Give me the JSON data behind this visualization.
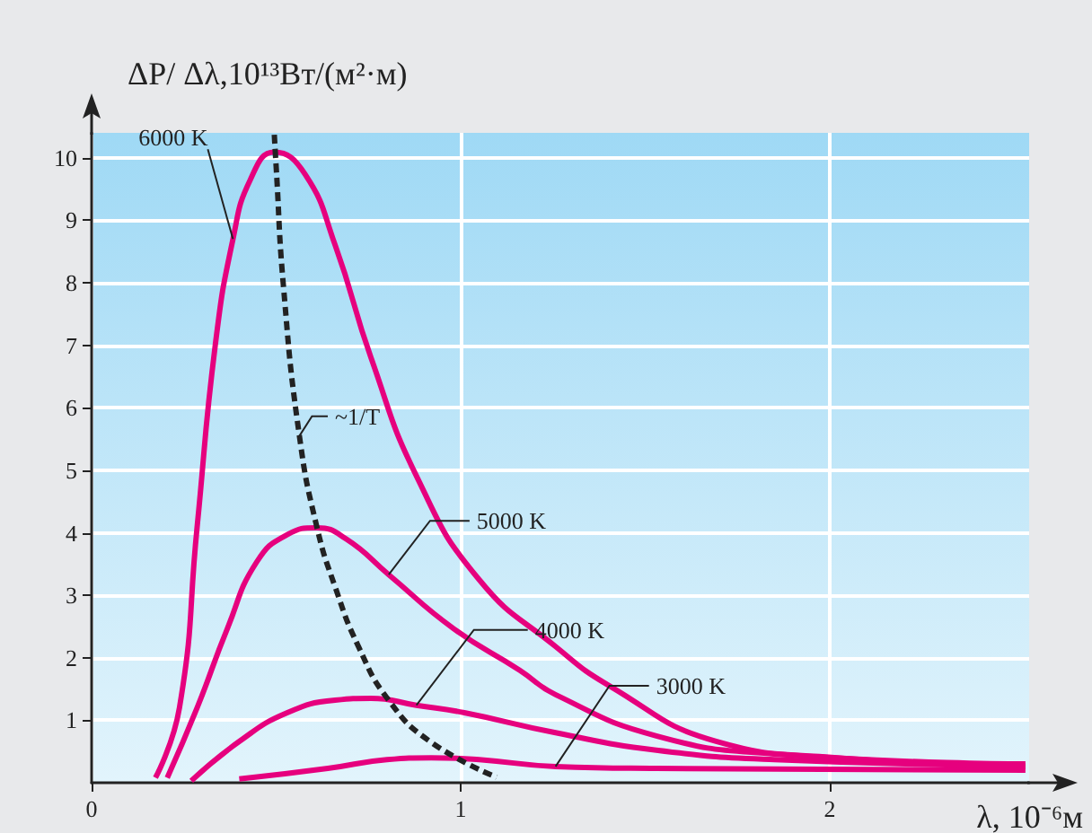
{
  "chart_data": {
    "type": "line",
    "xlabel": "λ, 10⁻⁶м",
    "ylabel": "ΔP/ Δλ,10¹³Вт/(м²·м)",
    "xlim": [
      0,
      2.54
    ],
    "ylim": [
      0,
      10.4
    ],
    "xticks": [
      0,
      1,
      2
    ],
    "yticks": [
      1,
      2,
      3,
      4,
      5,
      6,
      7,
      8,
      9,
      10
    ],
    "grid": true,
    "marker": "none",
    "line_style": "solid",
    "series": [
      {
        "name": "6000 K",
        "color": "#e6007e",
        "x": [
          0.173,
          0.238,
          0.286,
          0.335,
          0.383,
          0.43,
          0.495,
          0.578,
          0.66,
          0.757,
          0.884,
          1.05,
          1.257,
          1.403,
          1.694,
          2.02,
          2.53
        ],
        "values": [
          0.08,
          1.2,
          4.1,
          7.0,
          8.7,
          9.65,
          10.09,
          9.74,
          8.6,
          6.8,
          4.86,
          3.25,
          2.18,
          1.55,
          0.66,
          0.4,
          0.26
        ]
      },
      {
        "name": "5000 K",
        "color": "#e6007e",
        "x": [
          0.205,
          0.286,
          0.368,
          0.447,
          0.53,
          0.61,
          0.69,
          0.805,
          0.98,
          1.16,
          1.257,
          1.53,
          1.85,
          2.53
        ],
        "values": [
          0.08,
          1.2,
          2.47,
          3.53,
          3.97,
          4.08,
          3.9,
          3.33,
          2.47,
          1.8,
          1.41,
          0.75,
          0.46,
          0.3
        ]
      },
      {
        "name": "4000 K",
        "color": "#e6007e",
        "x": [
          0.27,
          0.4,
          0.53,
          0.66,
          0.757,
          0.88,
          1.01,
          1.257,
          1.53,
          1.85,
          2.53
        ],
        "values": [
          0.03,
          0.66,
          1.12,
          1.32,
          1.35,
          1.24,
          1.12,
          0.8,
          0.52,
          0.37,
          0.27
        ]
      },
      {
        "name": "3000 K",
        "color": "#e6007e",
        "x": [
          0.4,
          0.64,
          0.8,
          0.92,
          1.05,
          1.257,
          1.53,
          2.53
        ],
        "values": [
          0.06,
          0.23,
          0.37,
          0.4,
          0.37,
          0.26,
          0.23,
          0.2
        ]
      },
      {
        "name": "~1/T",
        "color": "#222222",
        "line_style": "dashed",
        "x": [
          0.495,
          0.5,
          0.52,
          0.563,
          0.61,
          0.66,
          0.723,
          0.805,
          0.917,
          1.097
        ],
        "values": [
          10.37,
          9.86,
          7.93,
          5.55,
          4.1,
          3.13,
          2.18,
          1.32,
          0.66,
          0.09
        ]
      }
    ]
  }
}
